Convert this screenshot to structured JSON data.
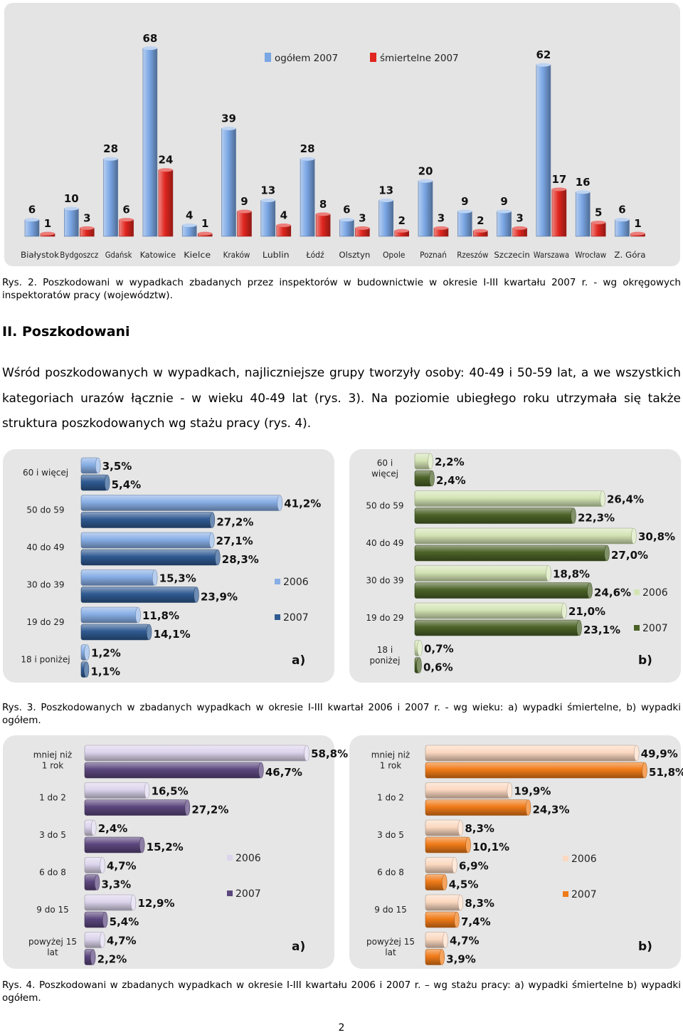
{
  "figure1": {
    "chart_data": {
      "type": "bar",
      "categories": [
        "Białystok",
        "Bydgoszcz",
        "Gdańsk",
        "Katowice",
        "Kielce",
        "Kraków",
        "Lublin",
        "Łódź",
        "Olsztyn",
        "Opole",
        "Poznań",
        "Rzeszów",
        "Szczecin",
        "Warszawa",
        "Wrocław",
        "Z. Góra"
      ],
      "series": [
        {
          "name": "ogółem 2007",
          "values": [
            6,
            10,
            28,
            68,
            4,
            39,
            13,
            28,
            6,
            13,
            20,
            9,
            9,
            62,
            16,
            6
          ]
        },
        {
          "name": "śmiertelne 2007",
          "values": [
            1,
            3,
            6,
            24,
            1,
            9,
            4,
            8,
            3,
            2,
            3,
            2,
            3,
            17,
            5,
            1
          ]
        }
      ],
      "ylim": [
        0,
        70
      ],
      "legend": "top-center"
    },
    "colors": {
      "series1": "#7aa6e4",
      "series2": "#e0261f",
      "panel": "#e4e4e4"
    }
  },
  "caption1": "Rys. 2. Poszkodowani w wypadkach zbadanych przez inspektorów w budownictwie w okresie I-III kwartału 2007 r. - wg okręgowych inspektoratów pracy (województw).",
  "heading": "II. Poszkodowani",
  "paragraph": "Wśród poszkodowanych w wypadkach, najliczniejsze grupy tworzyły osoby: 40-49 i 50-59 lat, a we wszystkich kategoriach urazów łącznie - w wieku 40-49 lat (rys. 3). Na poziomie ubiegłego roku utrzymała się także struktura poszkodowanych wg stażu pracy (rys. 4).",
  "figure3a": {
    "panel_label": "a)",
    "chart_data": {
      "type": "bar",
      "orientation": "horizontal",
      "categories": [
        "60 i więcej",
        "50 do 59",
        "40 do 49",
        "30 do 39",
        "19 do 29",
        "18 i poniżej"
      ],
      "series": [
        {
          "name": "2006",
          "values": [
            3.5,
            41.2,
            27.1,
            15.3,
            11.8,
            1.2
          ],
          "labels": [
            "3,5%",
            "41,2%",
            "27,1%",
            "15,3%",
            "11,8%",
            "1,2%"
          ]
        },
        {
          "name": "2007",
          "values": [
            5.4,
            27.2,
            28.3,
            23.9,
            14.1,
            1.1
          ],
          "labels": [
            "5,4%",
            "27,2%",
            "28,3%",
            "23,9%",
            "14,1%",
            "1,1%"
          ]
        }
      ],
      "xlim": [
        0,
        45
      ],
      "legend": "right"
    },
    "colors": {
      "series1": "#87aee5",
      "series2": "#2f5a92"
    }
  },
  "figure3b": {
    "panel_label": "b)",
    "chart_data": {
      "type": "bar",
      "orientation": "horizontal",
      "categories": [
        "60 i więcej",
        "50 do 59",
        "40 do 49",
        "30 do 39",
        "19 do 29",
        "18 i poniżej"
      ],
      "series": [
        {
          "name": "2006",
          "values": [
            2.2,
            26.4,
            30.8,
            18.8,
            21.0,
            0.7
          ],
          "labels": [
            "2,2%",
            "26,4%",
            "30,8%",
            "18,8%",
            "21,0%",
            "0,7%"
          ]
        },
        {
          "name": "2007",
          "values": [
            2.4,
            22.3,
            27.0,
            24.6,
            23.1,
            0.6
          ],
          "labels": [
            "2,4%",
            "22,3%",
            "27,0%",
            "24,6%",
            "23,1%",
            "0,6%"
          ]
        }
      ],
      "xlim": [
        0,
        33
      ],
      "legend": "right"
    },
    "colors": {
      "series1": "#d4e4b4",
      "series2": "#4b6227"
    }
  },
  "caption3": "Rys. 3. Poszkodowanych w zbadanych wypadkach w okresie I-III kwartał 2006 i 2007 r. - wg wieku: a) wypadki śmiertelne, b) wypadki ogółem.",
  "figure4a": {
    "panel_label": "a)",
    "chart_data": {
      "type": "bar",
      "orientation": "horizontal",
      "categories": [
        "mniej niż 1 rok",
        "1 do 2",
        "3 do 5",
        "6 do 8",
        "9 do 15",
        "powyżej 15 lat"
      ],
      "series": [
        {
          "name": "2006",
          "values": [
            58.8,
            16.5,
            2.4,
            4.7,
            12.9,
            4.7
          ],
          "labels": [
            "58,8%",
            "16,5%",
            "2,4%",
            "4,7%",
            "12,9%",
            "4,7%"
          ]
        },
        {
          "name": "2007",
          "values": [
            46.7,
            27.2,
            15.2,
            3.3,
            5.4,
            2.2
          ],
          "labels": [
            "46,7%",
            "27,2%",
            "15,2%",
            "3,3%",
            "5,4%",
            "2,2%"
          ]
        }
      ],
      "xlim": [
        0,
        65
      ],
      "legend": "right"
    },
    "colors": {
      "series1": "#dcd4ec",
      "series2": "#5c477e"
    }
  },
  "figure4b": {
    "panel_label": "b)",
    "chart_data": {
      "type": "bar",
      "orientation": "horizontal",
      "categories": [
        "mniej niż 1 rok",
        "1 do 2",
        "3 do 5",
        "6 do 8",
        "9 do 15",
        "powyżej 15 lat"
      ],
      "series": [
        {
          "name": "2006",
          "values": [
            49.9,
            19.9,
            8.3,
            6.9,
            8.3,
            4.7
          ],
          "labels": [
            "49,9%",
            "19,9%",
            "8,3%",
            "6,9%",
            "8,3%",
            "4,7%"
          ]
        },
        {
          "name": "2007",
          "values": [
            51.8,
            24.3,
            10.1,
            4.5,
            7.4,
            3.9
          ],
          "labels": [
            "51,8%",
            "24,3%",
            "10,1%",
            "4,5%",
            "7,4%",
            "3,9%"
          ]
        }
      ],
      "xlim": [
        0,
        56
      ],
      "legend": "right"
    },
    "colors": {
      "series1": "#fbd8c0",
      "series2": "#f07b18"
    }
  },
  "caption4": "Rys. 4. Poszkodowani w zbadanych wypadkach w okresie I-III kwartału 2006 i 2007 r. – wg stażu pracy: a) wypadki śmiertelne b) wypadki ogółem.",
  "page_number": "2"
}
